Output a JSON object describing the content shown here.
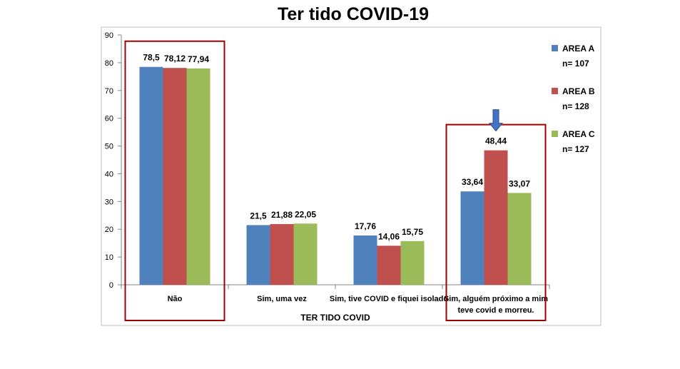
{
  "chart_data": {
    "type": "bar",
    "title": "Ter tido COVID-19",
    "xlabel": "TER TIDO COVID",
    "ylabel": "",
    "ylim": [
      0,
      90
    ],
    "yticks": [
      "0",
      "10",
      "20",
      "30",
      "40",
      "50",
      "60",
      "70",
      "80",
      "90"
    ],
    "categories": [
      {
        "lines": [
          "Não"
        ]
      },
      {
        "lines": [
          "Sim, uma vez"
        ]
      },
      {
        "lines": [
          "Sim, tive COVID e fiquei isolado"
        ]
      },
      {
        "lines": [
          "Sim, alguém próximo a mim",
          "teve covid e morreu."
        ]
      }
    ],
    "series": [
      {
        "name": "AREA A",
        "n": "n= 107",
        "color": "#4F81BD",
        "values": [
          78.5,
          21.5,
          17.76,
          33.64
        ],
        "labels": [
          "78,5",
          "21,5",
          "17,76",
          "33,64"
        ]
      },
      {
        "name": "AREA B",
        "n": "n= 128",
        "color": "#C0504D",
        "values": [
          78.12,
          21.88,
          14.06,
          48.44
        ],
        "labels": [
          "78,12",
          "21,88",
          "14,06",
          "48,44"
        ]
      },
      {
        "name": "AREA C",
        "n": "n= 127",
        "color": "#9BBB59",
        "values": [
          77.94,
          22.05,
          15.75,
          33.07
        ],
        "labels": [
          "77,94",
          "22,05",
          "15,75",
          "33,07"
        ]
      }
    ],
    "grid": false,
    "legend": "right",
    "highlights": {
      "boxes_around_categories": [
        0,
        3
      ],
      "box_color": "#A00000",
      "arrow_on": {
        "series": 1,
        "category": 3
      },
      "arrow_color": "#4472C4"
    }
  }
}
